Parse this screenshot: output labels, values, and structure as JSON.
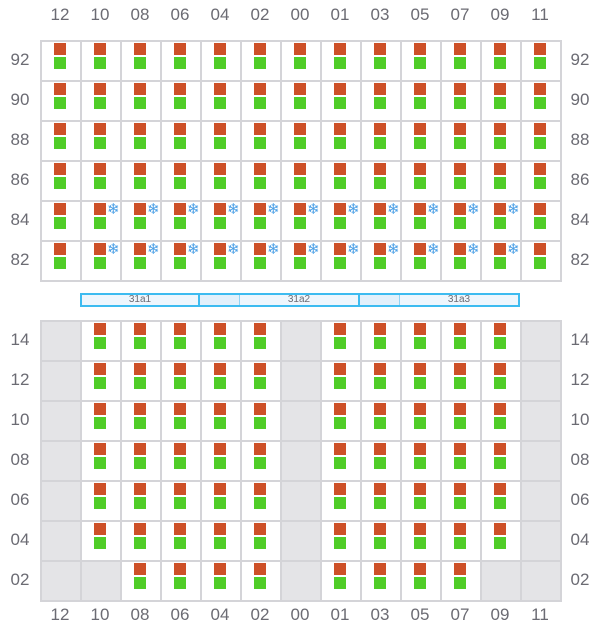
{
  "columns": [
    "12",
    "10",
    "08",
    "06",
    "04",
    "02",
    "00",
    "01",
    "03",
    "05",
    "07",
    "09",
    "11"
  ],
  "colors": {
    "container_top": "#cd5028",
    "container_bottom": "#50cd28",
    "reefer_icon": "#4a9fe6",
    "blocked": "#e4e4e7",
    "hatch_border": "#3dbbf0"
  },
  "legend_codes": {
    "c": "container",
    "r": "reefer-container",
    "x": "blocked",
    "": "empty"
  },
  "deck": {
    "rows": [
      {
        "label": "92",
        "cells": [
          "c",
          "c",
          "c",
          "c",
          "c",
          "c",
          "c",
          "c",
          "c",
          "c",
          "c",
          "c",
          "c"
        ]
      },
      {
        "label": "90",
        "cells": [
          "c",
          "c",
          "c",
          "c",
          "c",
          "c",
          "c",
          "c",
          "c",
          "c",
          "c",
          "c",
          "c"
        ]
      },
      {
        "label": "88",
        "cells": [
          "c",
          "c",
          "c",
          "c",
          "c",
          "c",
          "c",
          "c",
          "c",
          "c",
          "c",
          "c",
          "c"
        ]
      },
      {
        "label": "86",
        "cells": [
          "c",
          "c",
          "c",
          "c",
          "c",
          "c",
          "c",
          "c",
          "c",
          "c",
          "c",
          "c",
          "c"
        ]
      },
      {
        "label": "84",
        "cells": [
          "c",
          "r",
          "r",
          "r",
          "r",
          "r",
          "r",
          "r",
          "r",
          "r",
          "r",
          "r",
          "c"
        ]
      },
      {
        "label": "82",
        "cells": [
          "c",
          "r",
          "r",
          "r",
          "r",
          "r",
          "r",
          "r",
          "r",
          "r",
          "r",
          "r",
          "c"
        ]
      }
    ]
  },
  "hatch_covers": [
    {
      "label": "31a1"
    },
    {
      "label": ""
    },
    {
      "label": "31a2"
    },
    {
      "label": ""
    },
    {
      "label": "31a3"
    }
  ],
  "hold": {
    "rows": [
      {
        "label": "14",
        "cells": [
          "x",
          "c",
          "c",
          "c",
          "c",
          "c",
          "x",
          "c",
          "c",
          "c",
          "c",
          "c",
          "x"
        ]
      },
      {
        "label": "12",
        "cells": [
          "x",
          "c",
          "c",
          "c",
          "c",
          "c",
          "x",
          "c",
          "c",
          "c",
          "c",
          "c",
          "x"
        ]
      },
      {
        "label": "10",
        "cells": [
          "x",
          "c",
          "c",
          "c",
          "c",
          "c",
          "x",
          "c",
          "c",
          "c",
          "c",
          "c",
          "x"
        ]
      },
      {
        "label": "08",
        "cells": [
          "x",
          "c",
          "c",
          "c",
          "c",
          "c",
          "x",
          "c",
          "c",
          "c",
          "c",
          "c",
          "x"
        ]
      },
      {
        "label": "06",
        "cells": [
          "x",
          "c",
          "c",
          "c",
          "c",
          "c",
          "x",
          "c",
          "c",
          "c",
          "c",
          "c",
          "x"
        ]
      },
      {
        "label": "04",
        "cells": [
          "x",
          "c",
          "c",
          "c",
          "c",
          "c",
          "x",
          "c",
          "c",
          "c",
          "c",
          "c",
          "x"
        ]
      },
      {
        "label": "02",
        "cells": [
          "x",
          "x",
          "c",
          "c",
          "c",
          "c",
          "x",
          "c",
          "c",
          "c",
          "c",
          "x",
          "x"
        ]
      }
    ]
  }
}
